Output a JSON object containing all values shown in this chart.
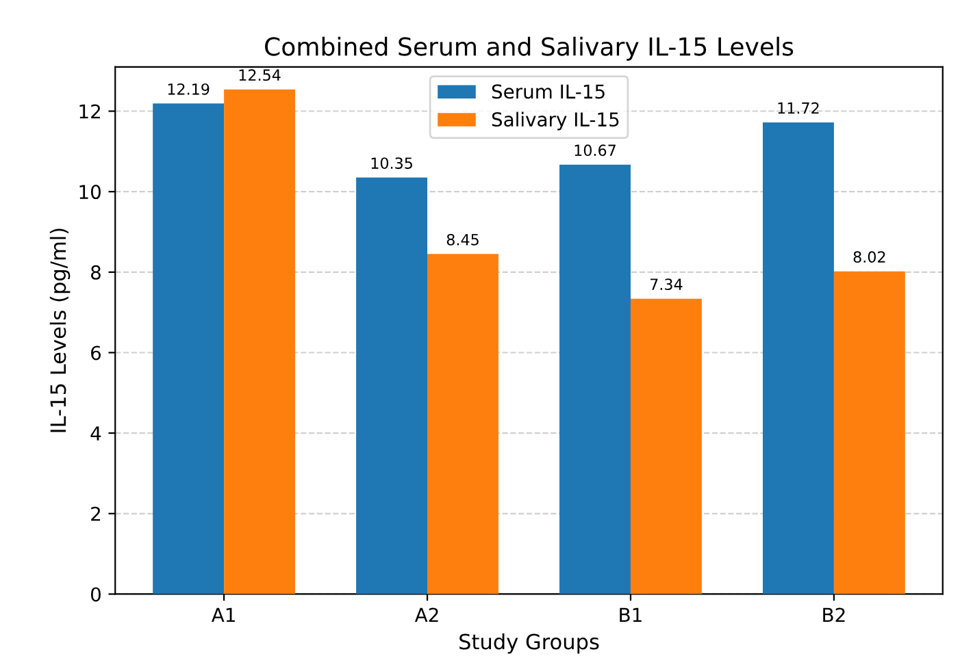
{
  "chart_data": {
    "type": "bar",
    "title": "Combined Serum and Salivary IL-15 Levels",
    "xlabel": "Study Groups",
    "ylabel": "IL-15 Levels (pg/ml)",
    "categories": [
      "A1",
      "A2",
      "B1",
      "B2"
    ],
    "series": [
      {
        "name": "Serum IL-15",
        "color": "#1f77b4",
        "values": [
          12.19,
          10.35,
          10.67,
          11.72
        ]
      },
      {
        "name": "Salivary IL-15",
        "color": "#ff7f0e",
        "values": [
          12.54,
          8.45,
          7.34,
          8.02
        ]
      }
    ],
    "ylim": [
      0,
      13.1
    ],
    "yticks": [
      0,
      2,
      4,
      6,
      8,
      10,
      12
    ],
    "grid": "y",
    "legend": "top",
    "data_labels": true
  }
}
